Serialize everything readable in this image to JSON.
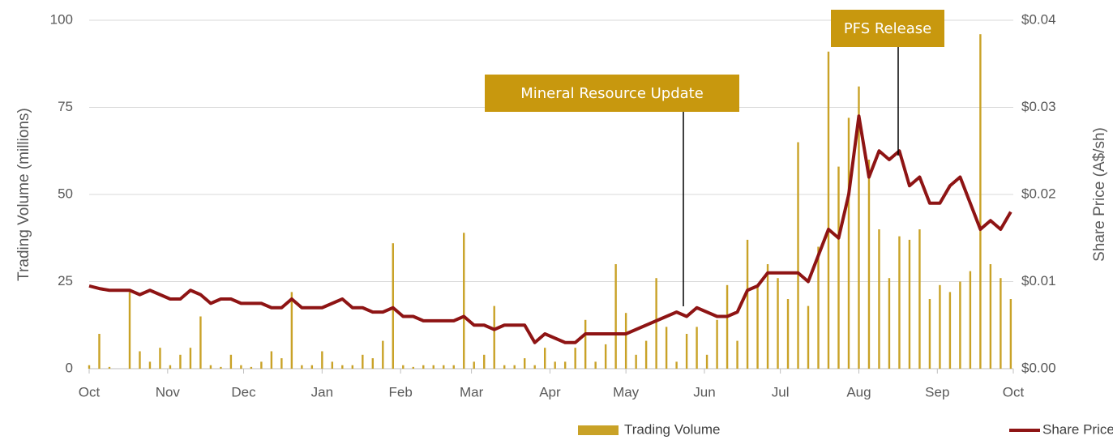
{
  "chart_data": {
    "type": "bar-line",
    "x": [
      0,
      4,
      8,
      12,
      16,
      20,
      24,
      28,
      32,
      36,
      40,
      44,
      48,
      52,
      56,
      60,
      64,
      68,
      72,
      76,
      80,
      84,
      88,
      92,
      96,
      100,
      104,
      108,
      112,
      116,
      120,
      124,
      128,
      132,
      136,
      140,
      144,
      148,
      152,
      156,
      160,
      164,
      168,
      172,
      176,
      180,
      184,
      188,
      192,
      196,
      200,
      204,
      208,
      212,
      216,
      220,
      224,
      228,
      232,
      236,
      240,
      244,
      248,
      252,
      256,
      260,
      264,
      268,
      272,
      276,
      280,
      284,
      288,
      292,
      296,
      300,
      304,
      308,
      312,
      316,
      320,
      324,
      328,
      332,
      336,
      340,
      344,
      348,
      352,
      356,
      360,
      364
    ],
    "xlim": [
      0,
      365
    ],
    "xticks": [
      {
        "value": 0,
        "label": "Oct"
      },
      {
        "value": 31,
        "label": "Nov"
      },
      {
        "value": 61,
        "label": "Dec"
      },
      {
        "value": 92,
        "label": "Jan"
      },
      {
        "value": 123,
        "label": "Feb"
      },
      {
        "value": 151,
        "label": "Mar"
      },
      {
        "value": 182,
        "label": "Apr"
      },
      {
        "value": 212,
        "label": "May"
      },
      {
        "value": 243,
        "label": "Jun"
      },
      {
        "value": 273,
        "label": "Jul"
      },
      {
        "value": 304,
        "label": "Aug"
      },
      {
        "value": 335,
        "label": "Sep"
      },
      {
        "value": 365,
        "label": "Oct"
      }
    ],
    "ylabel": "Trading Volume (millions)",
    "y2label": "Share Price (A$/sh)",
    "ylim": [
      0,
      100
    ],
    "yticks": [
      0,
      25,
      50,
      75,
      100
    ],
    "y2lim": [
      0,
      0.04
    ],
    "y2ticks": [
      {
        "value": 0,
        "label": "$0.00"
      },
      {
        "value": 0.01,
        "label": "$0.01"
      },
      {
        "value": 0.02,
        "label": "$0.02"
      },
      {
        "value": 0.03,
        "label": "$0.03"
      },
      {
        "value": 0.04,
        "label": "$0.04"
      }
    ],
    "grid": true,
    "series": [
      {
        "name": "Trading Volume",
        "color": "#c9a227",
        "type": "bar",
        "axis": "y",
        "values": [
          1,
          10,
          0.5,
          0,
          22,
          5,
          2,
          6,
          1,
          4,
          6,
          15,
          1,
          0.5,
          4,
          1,
          0.5,
          2,
          5,
          3,
          22,
          1,
          1,
          5,
          2,
          1,
          1,
          4,
          3,
          8,
          36,
          1,
          0.5,
          1,
          1,
          1,
          1,
          39,
          2,
          4,
          18,
          1,
          1,
          3,
          1,
          6,
          2,
          2,
          6,
          14,
          2,
          7,
          30,
          16,
          4,
          8,
          26,
          12,
          2,
          10,
          12,
          4,
          14,
          24,
          8,
          37,
          24,
          30,
          26,
          20,
          65,
          18,
          35,
          91,
          58,
          72,
          81,
          60,
          40,
          26,
          38,
          37,
          40,
          20,
          24,
          22,
          25,
          28,
          96,
          30,
          26,
          20
        ]
      },
      {
        "name": "Share Price",
        "color": "#8e1414",
        "type": "line",
        "axis": "y2",
        "values": [
          0.0095,
          0.0092,
          0.009,
          0.009,
          0.009,
          0.0085,
          0.009,
          0.0085,
          0.008,
          0.008,
          0.009,
          0.0085,
          0.0075,
          0.008,
          0.008,
          0.0075,
          0.0075,
          0.0075,
          0.007,
          0.007,
          0.008,
          0.007,
          0.007,
          0.007,
          0.0075,
          0.008,
          0.007,
          0.007,
          0.0065,
          0.0065,
          0.007,
          0.006,
          0.006,
          0.0055,
          0.0055,
          0.0055,
          0.0055,
          0.006,
          0.005,
          0.005,
          0.0045,
          0.005,
          0.005,
          0.005,
          0.003,
          0.004,
          0.0035,
          0.003,
          0.003,
          0.004,
          0.004,
          0.004,
          0.004,
          0.004,
          0.0045,
          0.005,
          0.0055,
          0.006,
          0.0065,
          0.006,
          0.007,
          0.0065,
          0.006,
          0.006,
          0.0065,
          0.009,
          0.0095,
          0.011,
          0.011,
          0.011,
          0.011,
          0.01,
          0.013,
          0.016,
          0.015,
          0.02,
          0.029,
          0.022,
          0.025,
          0.024,
          0.025,
          0.021,
          0.022,
          0.019,
          0.019,
          0.021,
          0.022,
          0.019,
          0.016,
          0.017,
          0.016,
          0.018
        ]
      }
    ],
    "annotations": [
      {
        "text": "Mineral Resource Update"
      },
      {
        "text": "PFS Release"
      }
    ],
    "legend": "bottom-right"
  }
}
